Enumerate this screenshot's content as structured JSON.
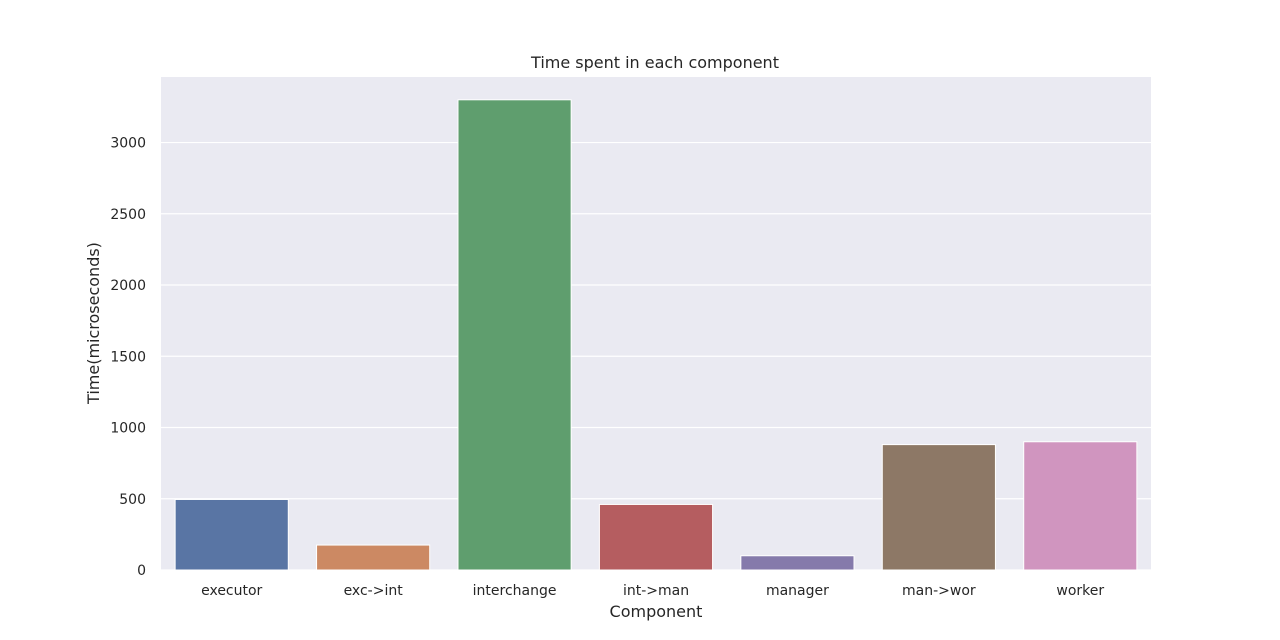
{
  "chart_data": {
    "type": "bar",
    "title": "Time spent in each component",
    "xlabel": "Component",
    "ylabel": "Time(microseconds)",
    "categories": [
      "executor",
      "exc->int",
      "interchange",
      "int->man",
      "manager",
      "man->wor",
      "worker"
    ],
    "values": [
      495,
      175,
      3300,
      460,
      100,
      880,
      900
    ],
    "ylim": [
      0,
      3460
    ],
    "yticks": [
      "0",
      "500",
      "1000",
      "1500",
      "2000",
      "2500",
      "3000"
    ],
    "grid": true,
    "colors": [
      "#5975a4",
      "#cc8963",
      "#5f9e6e",
      "#b55d60",
      "#857aab",
      "#8d7866",
      "#d095bf"
    ],
    "background": "#eaeaf2",
    "gridline_color": "#ffffff"
  }
}
